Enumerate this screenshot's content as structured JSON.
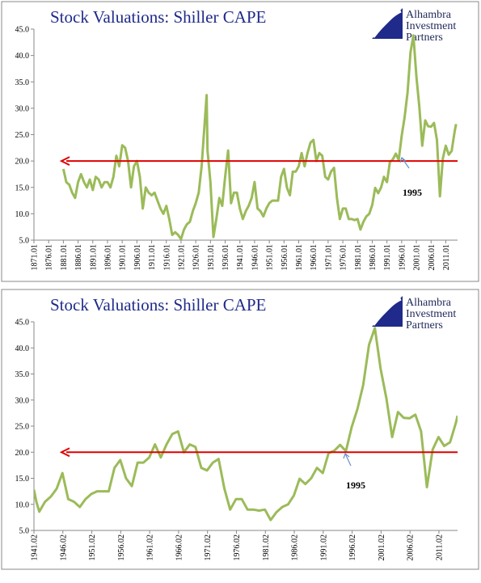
{
  "chart_data": [
    {
      "type": "line",
      "title": "Stock Valuations: Shiller CAPE",
      "logo": [
        "Alhambra",
        "Investment",
        "Partners"
      ],
      "annotation": "1995",
      "color": "#9bbb59",
      "reference_line": 20,
      "reference_color": "#e00000",
      "xlim": [
        1871,
        2015
      ],
      "ylim": [
        5,
        45
      ],
      "yticks": [
        {
          "value": 5,
          "label": "5.0"
        },
        {
          "value": 10,
          "label": "10.0"
        },
        {
          "value": 15,
          "label": "15.0"
        },
        {
          "value": 20,
          "label": "20.0"
        },
        {
          "value": 25,
          "label": "25.0"
        },
        {
          "value": 30,
          "label": "30.0"
        },
        {
          "value": 35,
          "label": "35.0"
        },
        {
          "value": 40,
          "label": "40.0"
        },
        {
          "value": 45,
          "label": "45.0"
        }
      ],
      "xticks": [
        {
          "value": 1871,
          "label": "1871.01"
        },
        {
          "value": 1876,
          "label": "1876.01"
        },
        {
          "value": 1881,
          "label": "1881.01"
        },
        {
          "value": 1886,
          "label": "1886.01"
        },
        {
          "value": 1891,
          "label": "1891.01"
        },
        {
          "value": 1896,
          "label": "1896.01"
        },
        {
          "value": 1901,
          "label": "1901.01"
        },
        {
          "value": 1906,
          "label": "1906.01"
        },
        {
          "value": 1911,
          "label": "1911.01"
        },
        {
          "value": 1916,
          "label": "1916.01"
        },
        {
          "value": 1921,
          "label": "1921.01"
        },
        {
          "value": 1926,
          "label": "1926.01"
        },
        {
          "value": 1931,
          "label": "1931.01"
        },
        {
          "value": 1936,
          "label": "1936.01"
        },
        {
          "value": 1941,
          "label": "1941.01"
        },
        {
          "value": 1946,
          "label": "1946.01"
        },
        {
          "value": 1951,
          "label": "1951.01"
        },
        {
          "value": 1956,
          "label": "1956.01"
        },
        {
          "value": 1961,
          "label": "1961.01"
        },
        {
          "value": 1966,
          "label": "1966.01"
        },
        {
          "value": 1971,
          "label": "1971.01"
        },
        {
          "value": 1976,
          "label": "1976.01"
        },
        {
          "value": 1981,
          "label": "1981.01"
        },
        {
          "value": 1986,
          "label": "1986.01"
        },
        {
          "value": 1991,
          "label": "1991.01"
        },
        {
          "value": 1996,
          "label": "1996.01"
        },
        {
          "value": 2001,
          "label": "2001.01"
        },
        {
          "value": 2006,
          "label": "2006.01"
        },
        {
          "value": 2011,
          "label": "2011.01"
        }
      ],
      "x": [
        1881,
        1882,
        1883,
        1884,
        1885,
        1886,
        1887,
        1888,
        1889,
        1890,
        1891,
        1892,
        1893,
        1894,
        1895,
        1896,
        1897,
        1898,
        1899,
        1900,
        1901,
        1902,
        1903,
        1904,
        1905,
        1906,
        1907,
        1908,
        1909,
        1910,
        1911,
        1912,
        1913,
        1914,
        1915,
        1916,
        1917,
        1918,
        1919,
        1920,
        1921,
        1922,
        1923,
        1924,
        1925,
        1926,
        1927,
        1928,
        1929,
        1929.7,
        1930,
        1931,
        1932,
        1933,
        1934,
        1935,
        1936,
        1937,
        1938,
        1939,
        1940,
        1941,
        1942,
        1943,
        1944,
        1945,
        1946,
        1947,
        1948,
        1949,
        1950,
        1951,
        1952,
        1953,
        1954,
        1955,
        1956,
        1957,
        1958,
        1959,
        1960,
        1961,
        1962,
        1963,
        1964,
        1965,
        1966,
        1967,
        1968,
        1969,
        1970,
        1971,
        1972,
        1973,
        1974,
        1975,
        1976,
        1977,
        1978,
        1979,
        1980,
        1981,
        1982,
        1983,
        1984,
        1985,
        1986,
        1987,
        1988,
        1989,
        1990,
        1991,
        1992,
        1993,
        1994,
        1995,
        1996,
        1997,
        1998,
        1999,
        2000,
        2001,
        2002,
        2003,
        2004,
        2005,
        2006,
        2007,
        2008,
        2009,
        2010,
        2011,
        2012,
        2013,
        2014,
        2014.5
      ],
      "values": [
        18.5,
        16,
        15.5,
        14,
        13,
        16,
        17.5,
        16,
        15,
        16.5,
        14.5,
        17,
        16.5,
        15,
        16,
        16,
        15,
        17,
        21,
        19,
        23,
        22.5,
        20,
        15,
        19,
        20,
        17,
        11,
        15,
        14,
        13.5,
        14,
        12.5,
        11,
        10,
        11.5,
        9,
        6,
        6.5,
        6,
        5.2,
        7,
        8,
        8.5,
        10.5,
        12,
        14,
        19,
        27,
        32.5,
        22,
        16,
        5.6,
        9,
        13,
        11.5,
        17,
        22,
        12,
        14,
        14,
        11,
        9,
        10.5,
        11.5,
        13,
        16,
        11,
        10.5,
        9.5,
        11,
        12,
        12.5,
        12.5,
        12.5,
        17,
        18.5,
        15,
        13.5,
        18,
        18,
        19,
        21.5,
        19,
        21.5,
        23.5,
        24,
        20,
        21.5,
        21,
        17,
        16.5,
        18,
        18.7,
        13,
        9,
        11,
        11,
        9,
        9,
        8.8,
        9,
        7,
        8.5,
        9.5,
        10,
        11.7,
        14.9,
        13.9,
        15,
        17,
        16,
        19.8,
        20.3,
        21.4,
        20.2,
        24.8,
        28.3,
        32.9,
        40.6,
        43.8,
        36,
        30.3,
        22.9,
        27.7,
        26.6,
        26.5,
        27.2,
        24,
        13.3,
        20.5,
        22.9,
        21.2,
        21.9,
        25.6,
        27
      ]
    },
    {
      "type": "line",
      "title": "Stock Valuations: Shiller CAPE",
      "logo": [
        "Alhambra",
        "Investment",
        "Partners"
      ],
      "annotation": "1995",
      "color": "#9bbb59",
      "reference_line": 20,
      "reference_color": "#e00000",
      "xlim": [
        1941.08,
        2014.3
      ],
      "ylim": [
        5,
        45
      ],
      "yticks": [
        {
          "value": 5,
          "label": "5.0"
        },
        {
          "value": 10,
          "label": "10.0"
        },
        {
          "value": 15,
          "label": "15.0"
        },
        {
          "value": 20,
          "label": "20.0"
        },
        {
          "value": 25,
          "label": "25.0"
        },
        {
          "value": 30,
          "label": "30.0"
        },
        {
          "value": 35,
          "label": "35.0"
        },
        {
          "value": 40,
          "label": "40.0"
        },
        {
          "value": 45,
          "label": "45.0"
        }
      ],
      "xticks": [
        {
          "value": 1941.08,
          "label": "1941.02"
        },
        {
          "value": 1946.08,
          "label": "1946.02"
        },
        {
          "value": 1951.08,
          "label": "1951.02"
        },
        {
          "value": 1956.08,
          "label": "1956.02"
        },
        {
          "value": 1961.08,
          "label": "1961.02"
        },
        {
          "value": 1966.08,
          "label": "1966.02"
        },
        {
          "value": 1971.08,
          "label": "1971.02"
        },
        {
          "value": 1976.08,
          "label": "1976.02"
        },
        {
          "value": 1981.08,
          "label": "1981.02"
        },
        {
          "value": 1986.08,
          "label": "1986.02"
        },
        {
          "value": 1991.08,
          "label": "1991.02"
        },
        {
          "value": 1996.08,
          "label": "1996.02"
        },
        {
          "value": 2001.08,
          "label": "2001.02"
        },
        {
          "value": 2006.08,
          "label": "2006.02"
        },
        {
          "value": 2011.08,
          "label": "2011.02"
        }
      ],
      "x": [
        1941.08,
        1941.5,
        1942,
        1943,
        1944,
        1945,
        1946,
        1947,
        1948,
        1949,
        1950,
        1951,
        1952,
        1953,
        1954,
        1955,
        1956,
        1957,
        1958,
        1959,
        1960,
        1961,
        1962,
        1963,
        1964,
        1965,
        1966,
        1967,
        1968,
        1969,
        1970,
        1971,
        1972,
        1973,
        1974,
        1975,
        1976,
        1977,
        1978,
        1979,
        1980,
        1981,
        1982,
        1983,
        1984,
        1985,
        1986,
        1987,
        1988,
        1989,
        1990,
        1991,
        1992,
        1993,
        1994,
        1995,
        1996,
        1997,
        1998,
        1999,
        2000,
        2001,
        2002,
        2003,
        2004,
        2005,
        2006,
        2007,
        2008,
        2009,
        2010,
        2011,
        2012,
        2013,
        2014,
        2014.3
      ],
      "values": [
        12.8,
        10.5,
        8.6,
        10.5,
        11.5,
        13,
        16,
        11,
        10.5,
        9.5,
        11,
        12,
        12.5,
        12.5,
        12.5,
        17,
        18.5,
        15,
        13.5,
        18,
        18,
        19,
        21.5,
        19,
        21.5,
        23.5,
        24,
        20,
        21.5,
        21,
        17,
        16.5,
        18,
        18.7,
        13,
        9,
        11,
        11,
        9,
        9,
        8.8,
        9,
        7,
        8.5,
        9.5,
        10,
        11.7,
        14.9,
        13.9,
        15,
        17,
        16,
        19.8,
        20.3,
        21.4,
        20.2,
        24.8,
        28.3,
        32.9,
        40.6,
        43.8,
        36,
        30.3,
        22.9,
        27.7,
        26.6,
        26.5,
        27.2,
        24,
        13.3,
        20.5,
        22.9,
        21.2,
        21.9,
        25.6,
        27
      ]
    }
  ]
}
